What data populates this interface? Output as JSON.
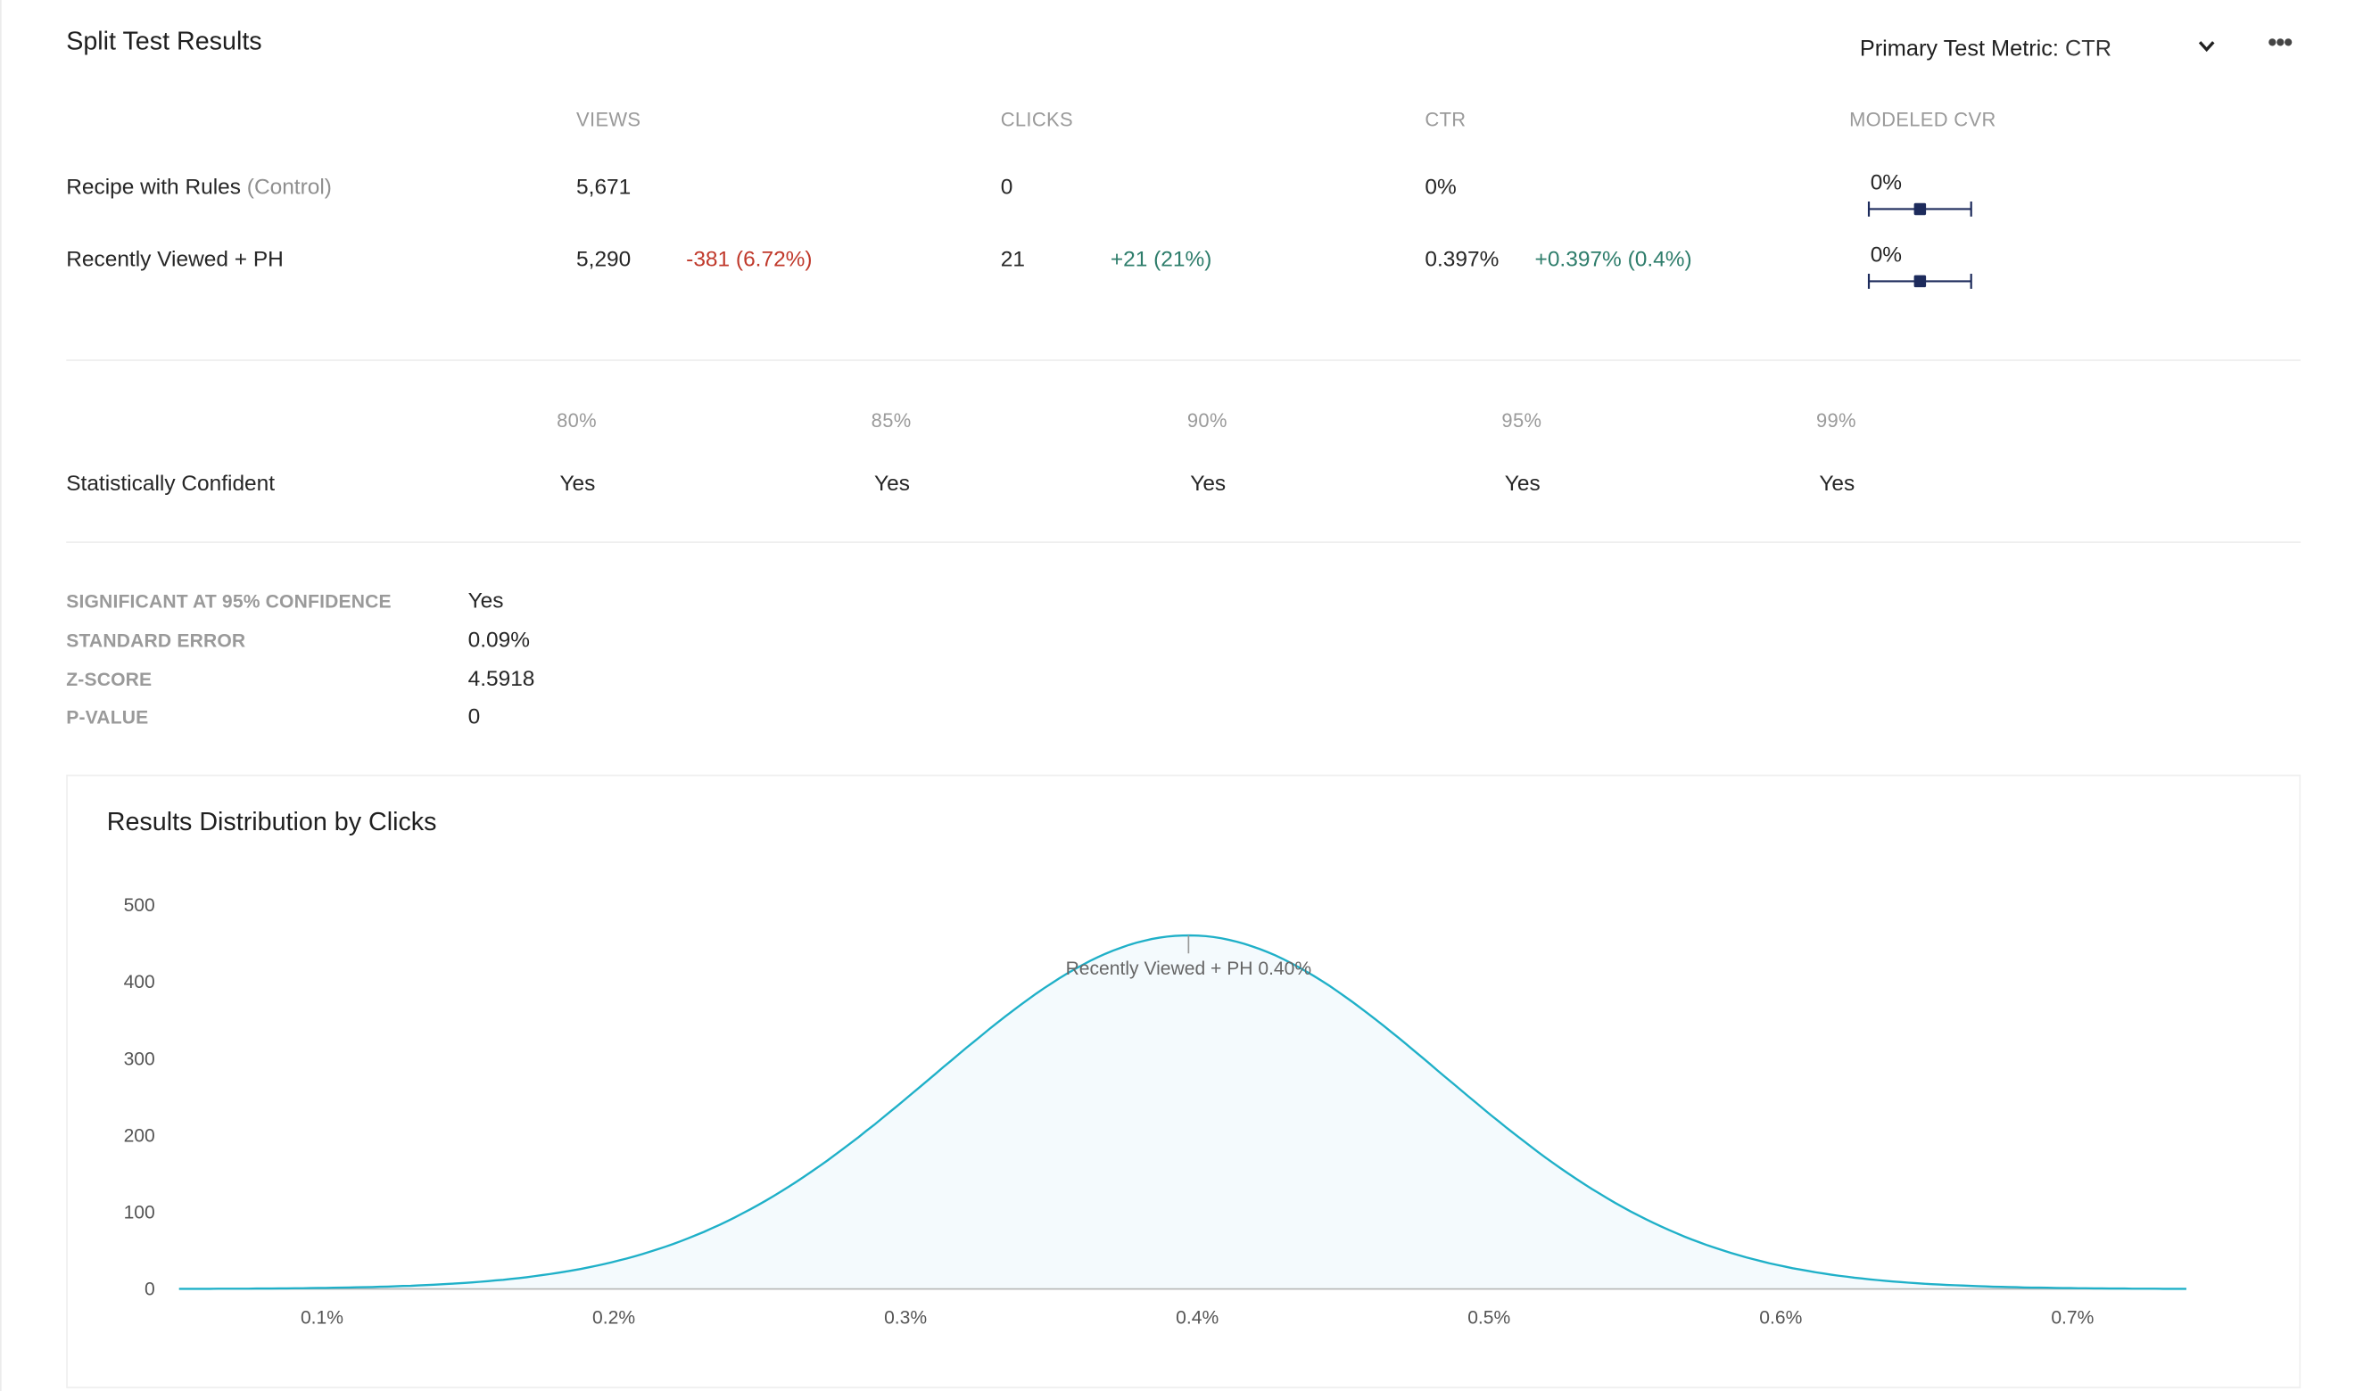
{
  "page": {
    "title": "Split Test Results",
    "metric_label": "Primary Test Metric:",
    "metric_value": "CTR",
    "more_label": "•••"
  },
  "table": {
    "columns": [
      "VIEWS",
      "CLICKS",
      "CTR",
      "MODELED CVR"
    ],
    "rows": [
      {
        "name": "Recipe with Rules",
        "tag": "(Control)",
        "views": "5,671",
        "views_delta": "",
        "clicks": "0",
        "clicks_delta": "",
        "ctr": "0%",
        "ctr_delta": "",
        "cvr": "0%"
      },
      {
        "name": "Recently Viewed + PH",
        "tag": "",
        "views": "5,290",
        "views_delta": "-381 (6.72%)",
        "clicks": "21",
        "clicks_delta": "+21 (21%)",
        "ctr": "0.397%",
        "ctr_delta": "+0.397% (0.4%)",
        "cvr": "0%"
      }
    ]
  },
  "confidence": {
    "levels": [
      "80%",
      "85%",
      "90%",
      "95%",
      "99%"
    ],
    "row_label": "Statistically Confident",
    "values": [
      "Yes",
      "Yes",
      "Yes",
      "Yes",
      "Yes"
    ]
  },
  "stats": [
    {
      "label": "SIGNIFICANT AT 95% CONFIDENCE",
      "value": "Yes"
    },
    {
      "label": "STANDARD ERROR",
      "value": "0.09%"
    },
    {
      "label": "Z-SCORE",
      "value": "4.5918"
    },
    {
      "label": "P-VALUE",
      "value": "0"
    }
  ],
  "colors": {
    "curve": "#1fb0c8",
    "fill": "#f4fafd",
    "negative": "#c0392b",
    "positive": "#2e7d6b",
    "error_bar": "#1d2b5c"
  },
  "chart_data": {
    "type": "area",
    "title": "Results Distribution by Clicks",
    "xlabel": "",
    "ylabel": "",
    "x_ticks": [
      "0.1%",
      "0.2%",
      "0.3%",
      "0.4%",
      "0.5%",
      "0.6%",
      "0.7%"
    ],
    "x_tick_values": [
      0.1,
      0.2,
      0.3,
      0.4,
      0.5,
      0.6,
      0.7
    ],
    "y_ticks": [
      "0",
      "100",
      "200",
      "300",
      "400",
      "500"
    ],
    "y_tick_values": [
      0,
      100,
      200,
      300,
      400,
      500
    ],
    "xlim": [
      0.051,
      0.739
    ],
    "ylim": [
      0,
      500
    ],
    "grid": false,
    "series": [
      {
        "name": "Recently Viewed + PH",
        "distribution": "normal",
        "mean": 0.397,
        "sd": 0.087,
        "peak": 461
      }
    ],
    "annotation": {
      "text": "Recently Viewed + PH 0.40%",
      "x": 0.397
    }
  }
}
